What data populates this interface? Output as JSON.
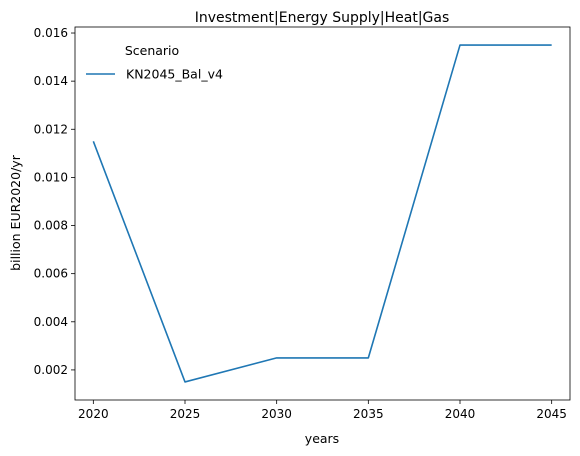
{
  "chart_data": {
    "type": "line",
    "title": "Investment|Energy Supply|Heat|Gas",
    "xlabel": "years",
    "ylabel": "billion EUR2020/yr",
    "x": [
      2020,
      2025,
      2030,
      2035,
      2040,
      2045
    ],
    "x_ticks": [
      "2020",
      "2025",
      "2030",
      "2035",
      "2040",
      "2045"
    ],
    "y_ticks": [
      "0.002",
      "0.004",
      "0.006",
      "0.008",
      "0.010",
      "0.012",
      "0.014",
      "0.016"
    ],
    "ylim": [
      0.00075,
      0.01625
    ],
    "xlim": [
      2019,
      2046
    ],
    "grid": false,
    "legend": {
      "title": "Scenario",
      "placement": "top-left"
    },
    "series": [
      {
        "name": "KN2045_Bal_v4",
        "color": "#1f77b4",
        "values": [
          0.0115,
          0.0015,
          0.0025,
          0.0025,
          0.0155,
          0.0155
        ]
      }
    ]
  }
}
